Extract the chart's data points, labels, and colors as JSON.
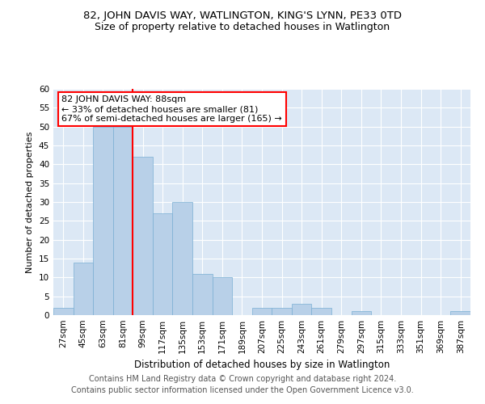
{
  "title": "82, JOHN DAVIS WAY, WATLINGTON, KING'S LYNN, PE33 0TD",
  "subtitle": "Size of property relative to detached houses in Watlington",
  "xlabel": "Distribution of detached houses by size in Watlington",
  "ylabel": "Number of detached properties",
  "bin_labels": [
    "27sqm",
    "45sqm",
    "63sqm",
    "81sqm",
    "99sqm",
    "117sqm",
    "135sqm",
    "153sqm",
    "171sqm",
    "189sqm",
    "207sqm",
    "225sqm",
    "243sqm",
    "261sqm",
    "279sqm",
    "297sqm",
    "315sqm",
    "333sqm",
    "351sqm",
    "369sqm",
    "387sqm"
  ],
  "bin_values": [
    2,
    14,
    50,
    50,
    42,
    27,
    30,
    11,
    10,
    0,
    2,
    2,
    3,
    2,
    0,
    1,
    0,
    0,
    0,
    0,
    1
  ],
  "bar_color": "#b8d0e8",
  "bar_edge_color": "#7aafd4",
  "property_line_x": 3.5,
  "property_line_color": "red",
  "annotation_text": "82 JOHN DAVIS WAY: 88sqm\n← 33% of detached houses are smaller (81)\n67% of semi-detached houses are larger (165) →",
  "annotation_box_color": "white",
  "annotation_box_edge_color": "red",
  "ylim": [
    0,
    60
  ],
  "yticks": [
    0,
    5,
    10,
    15,
    20,
    25,
    30,
    35,
    40,
    45,
    50,
    55,
    60
  ],
  "footer_line1": "Contains HM Land Registry data © Crown copyright and database right 2024.",
  "footer_line2": "Contains public sector information licensed under the Open Government Licence v3.0.",
  "bg_color": "#dce8f5",
  "grid_color": "#ffffff",
  "title_fontsize": 9.5,
  "subtitle_fontsize": 9,
  "xlabel_fontsize": 8.5,
  "ylabel_fontsize": 8,
  "annotation_fontsize": 8,
  "footer_fontsize": 7,
  "tick_labelsize": 7.5
}
